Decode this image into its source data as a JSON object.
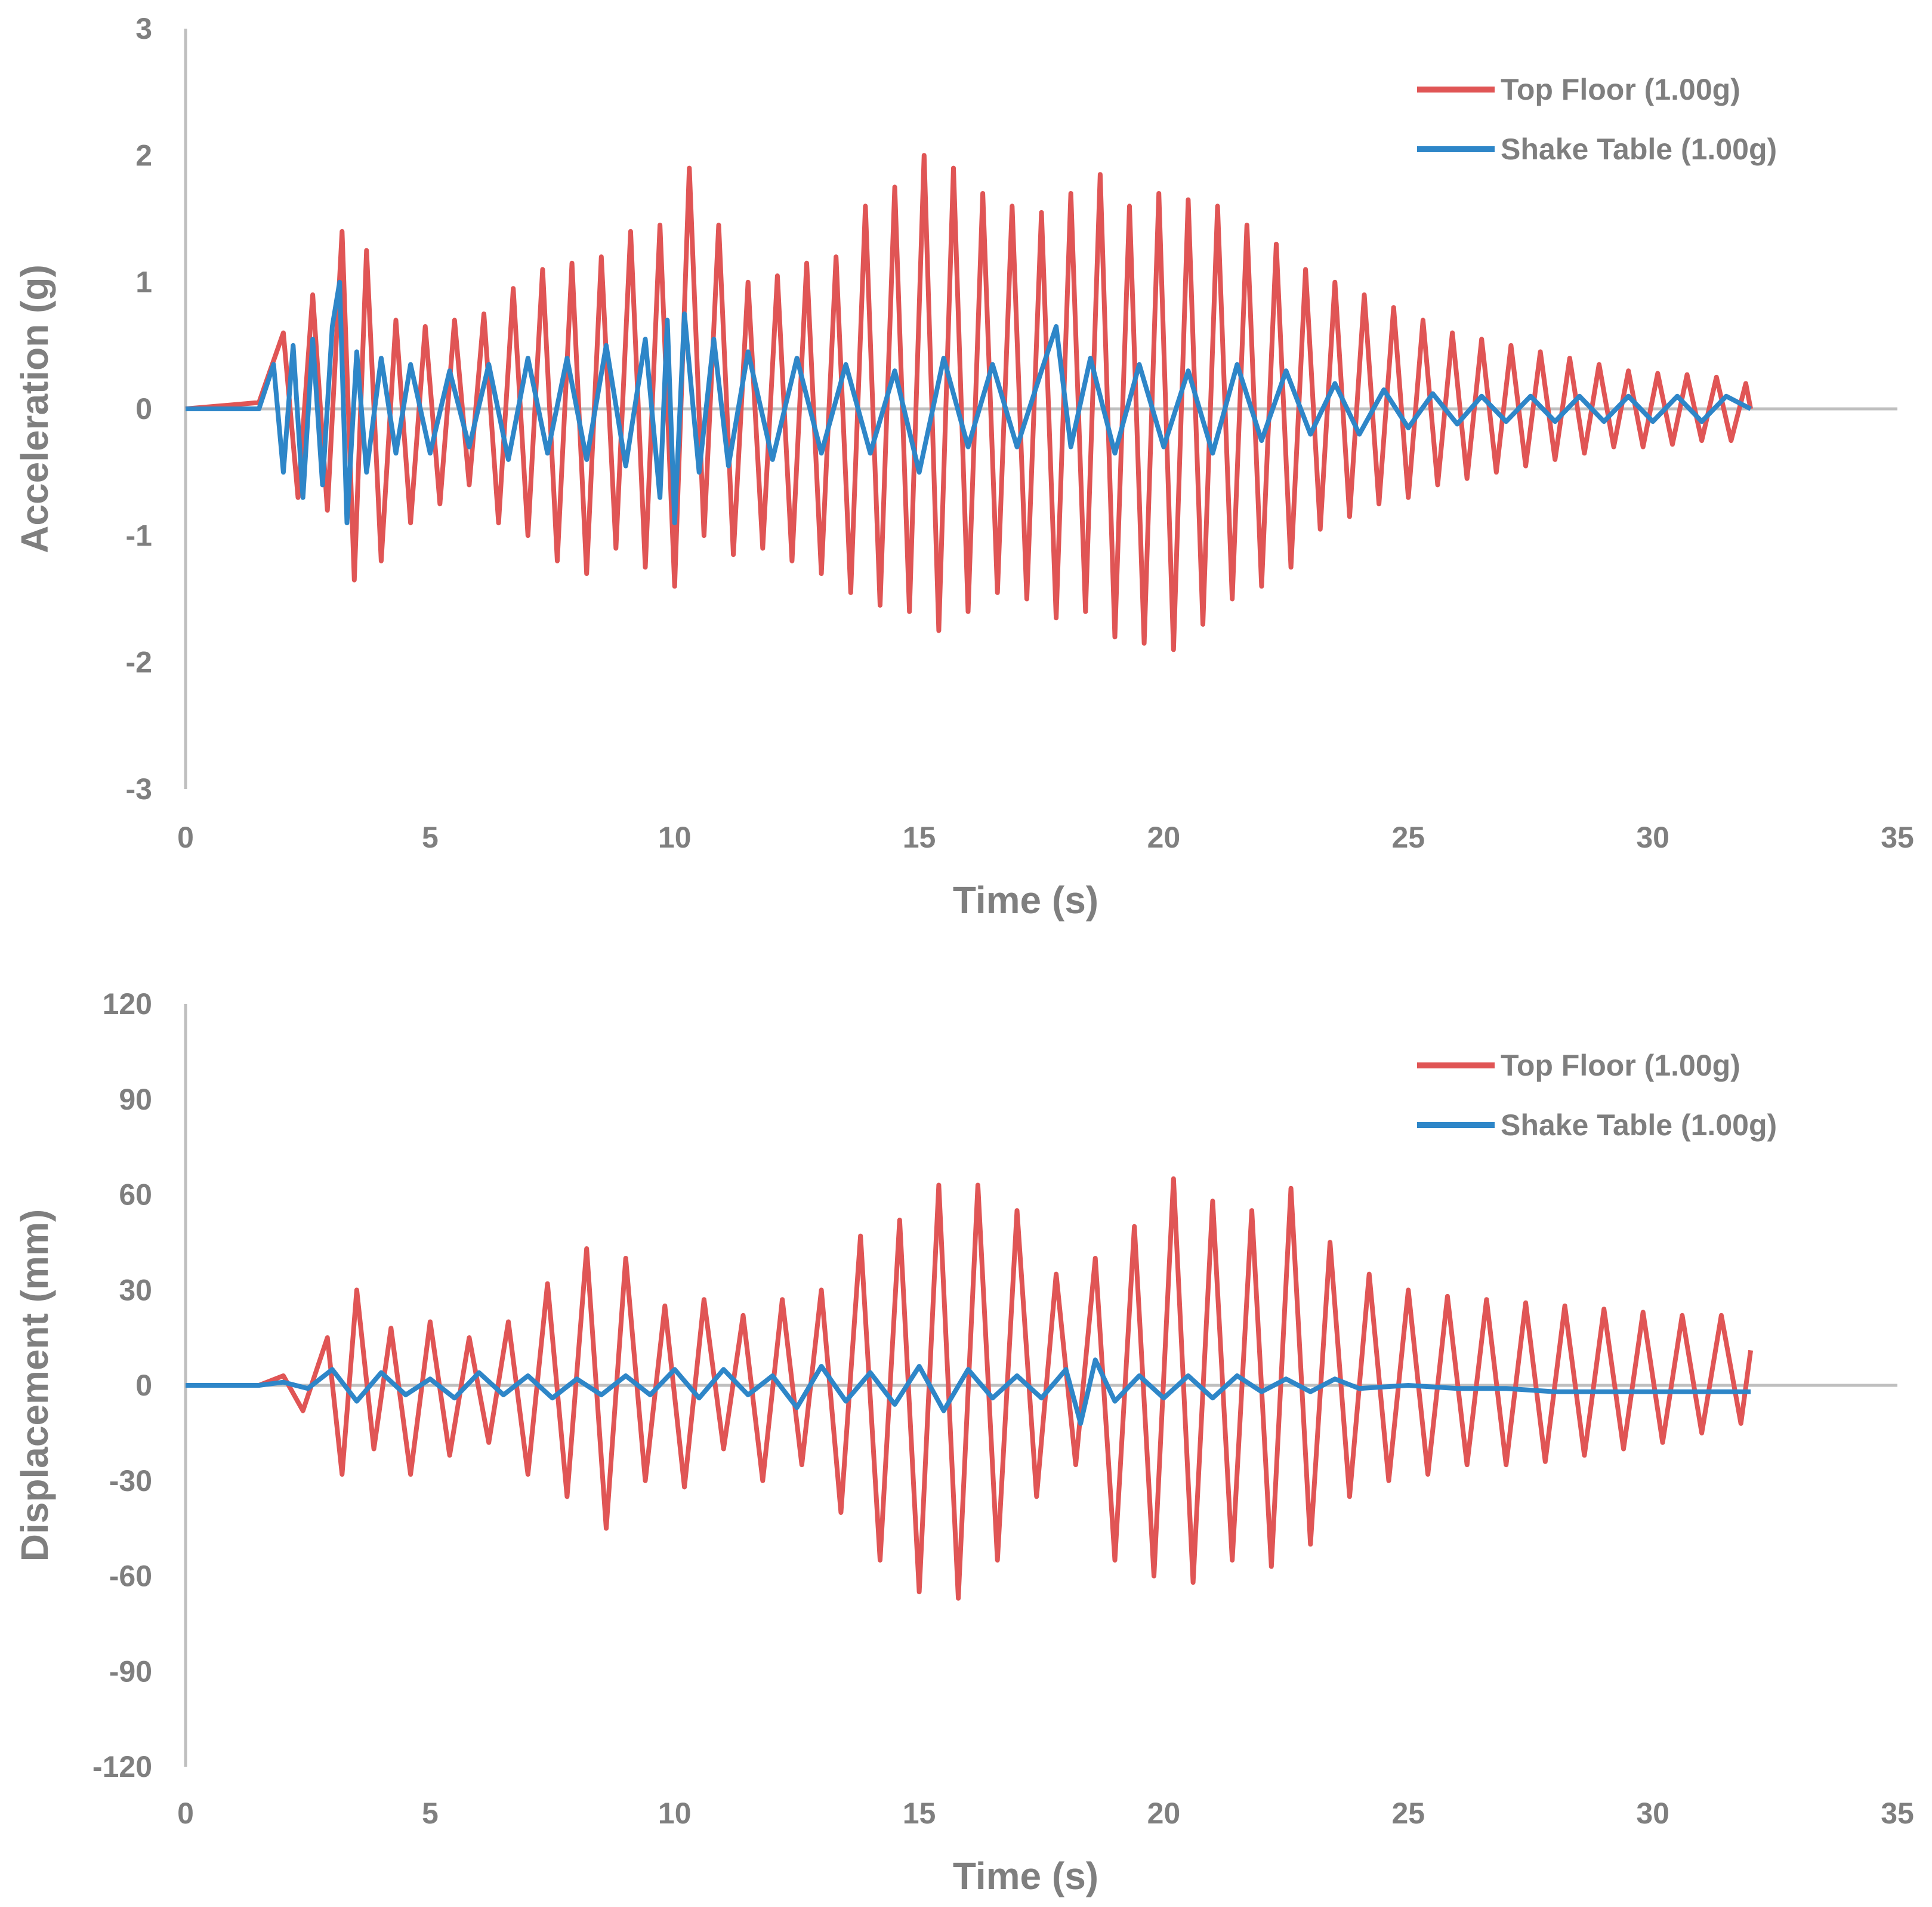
{
  "colors": {
    "top_floor": "#e05555",
    "shake_table": "#2e86c8",
    "axis": "#bfbfbf",
    "text": "#7f7f7f"
  },
  "chart_data": [
    {
      "type": "line",
      "title": "",
      "xlabel": "Time (s)",
      "ylabel": "Acceleration (g)",
      "xlim": [
        0,
        35
      ],
      "ylim": [
        -3,
        3
      ],
      "xticks": [
        0,
        5,
        10,
        15,
        20,
        25,
        30,
        35
      ],
      "yticks": [
        -3,
        -2,
        -1,
        0,
        1,
        2,
        3
      ],
      "x_tick_labels": [
        "0",
        "5",
        "10",
        "15",
        "20",
        "25",
        "30",
        "35"
      ],
      "y_tick_labels": [
        "-3",
        "-2",
        "-1",
        "0",
        "1",
        "2",
        "3"
      ],
      "grid": false,
      "legend_position": "top-right",
      "series": [
        {
          "name": "Top Floor (1.00g)",
          "color": "#e05555",
          "x": [
            0,
            1.5,
            2.0,
            2.3,
            2.6,
            2.9,
            3.2,
            3.45,
            3.7,
            4.0,
            4.3,
            4.6,
            4.9,
            5.2,
            5.5,
            5.8,
            6.1,
            6.4,
            6.7,
            7.0,
            7.3,
            7.6,
            7.9,
            8.2,
            8.5,
            8.8,
            9.1,
            9.4,
            9.7,
            10.0,
            10.3,
            10.6,
            10.9,
            11.2,
            11.5,
            11.8,
            12.1,
            12.4,
            12.7,
            13.0,
            13.3,
            13.6,
            13.9,
            14.2,
            14.5,
            14.8,
            15.1,
            15.4,
            15.7,
            16.0,
            16.3,
            16.6,
            16.9,
            17.2,
            17.5,
            17.8,
            18.1,
            18.4,
            18.7,
            19.0,
            19.3,
            19.6,
            19.9,
            20.2,
            20.5,
            20.8,
            21.1,
            21.4,
            21.7,
            22.0,
            22.3,
            22.6,
            22.9,
            23.2,
            23.5,
            23.8,
            24.1,
            24.4,
            24.7,
            25.0,
            25.3,
            25.6,
            25.9,
            26.2,
            26.5,
            26.8,
            27.1,
            27.4,
            27.7,
            28.0,
            28.3,
            28.6,
            28.9,
            29.2,
            29.5,
            29.8,
            30.1,
            30.4,
            30.7,
            31.0,
            31.3,
            31.6,
            31.9,
            32.0
          ],
          "values": [
            0.0,
            0.05,
            0.6,
            -0.7,
            0.9,
            -0.8,
            1.4,
            -1.35,
            1.25,
            -1.2,
            0.7,
            -0.9,
            0.65,
            -0.75,
            0.7,
            -0.6,
            0.75,
            -0.9,
            0.95,
            -1.0,
            1.1,
            -1.2,
            1.15,
            -1.3,
            1.2,
            -1.1,
            1.4,
            -1.25,
            1.45,
            -1.4,
            1.9,
            -1.0,
            1.45,
            -1.15,
            1.0,
            -1.1,
            1.05,
            -1.2,
            1.15,
            -1.3,
            1.2,
            -1.45,
            1.6,
            -1.55,
            1.75,
            -1.6,
            2.0,
            -1.75,
            1.9,
            -1.6,
            1.7,
            -1.45,
            1.6,
            -1.5,
            1.55,
            -1.65,
            1.7,
            -1.6,
            1.85,
            -1.8,
            1.6,
            -1.85,
            1.7,
            -1.9,
            1.65,
            -1.7,
            1.6,
            -1.5,
            1.45,
            -1.4,
            1.3,
            -1.25,
            1.1,
            -0.95,
            1.0,
            -0.85,
            0.9,
            -0.75,
            0.8,
            -0.7,
            0.7,
            -0.6,
            0.6,
            -0.55,
            0.55,
            -0.5,
            0.5,
            -0.45,
            0.45,
            -0.4,
            0.4,
            -0.35,
            0.35,
            -0.3,
            0.3,
            -0.3,
            0.28,
            -0.28,
            0.27,
            -0.25,
            0.25,
            -0.25,
            0.2,
            0.0
          ]
        },
        {
          "name": "Shake Table (1.00g)",
          "color": "#2e86c8",
          "x": [
            0,
            1.5,
            1.8,
            2.0,
            2.2,
            2.4,
            2.6,
            2.8,
            3.0,
            3.15,
            3.3,
            3.5,
            3.7,
            4.0,
            4.3,
            4.6,
            5.0,
            5.4,
            5.8,
            6.2,
            6.6,
            7.0,
            7.4,
            7.8,
            8.2,
            8.6,
            9.0,
            9.4,
            9.7,
            9.85,
            10.0,
            10.2,
            10.5,
            10.8,
            11.1,
            11.5,
            12.0,
            12.5,
            13.0,
            13.5,
            14.0,
            14.5,
            15.0,
            15.5,
            16.0,
            16.5,
            17.0,
            17.5,
            17.8,
            18.1,
            18.5,
            19.0,
            19.5,
            20.0,
            20.5,
            21.0,
            21.5,
            22.0,
            22.5,
            23.0,
            23.5,
            24.0,
            24.5,
            25.0,
            25.5,
            26.0,
            26.5,
            27.0,
            27.5,
            28.0,
            28.5,
            29.0,
            29.5,
            30.0,
            30.5,
            31.0,
            31.5,
            32.0
          ],
          "values": [
            0.0,
            0.0,
            0.35,
            -0.5,
            0.5,
            -0.7,
            0.55,
            -0.6,
            0.65,
            1.0,
            -0.9,
            0.45,
            -0.5,
            0.4,
            -0.35,
            0.35,
            -0.35,
            0.3,
            -0.3,
            0.35,
            -0.4,
            0.4,
            -0.35,
            0.4,
            -0.4,
            0.5,
            -0.45,
            0.55,
            -0.7,
            0.7,
            -0.9,
            0.75,
            -0.5,
            0.55,
            -0.45,
            0.45,
            -0.4,
            0.4,
            -0.35,
            0.35,
            -0.35,
            0.3,
            -0.5,
            0.4,
            -0.3,
            0.35,
            -0.3,
            0.3,
            0.65,
            -0.3,
            0.4,
            -0.35,
            0.35,
            -0.3,
            0.3,
            -0.35,
            0.35,
            -0.25,
            0.3,
            -0.2,
            0.2,
            -0.2,
            0.15,
            -0.15,
            0.12,
            -0.12,
            0.1,
            -0.1,
            0.1,
            -0.1,
            0.1,
            -0.1,
            0.1,
            -0.1,
            0.1,
            -0.1,
            0.1,
            0.0
          ]
        }
      ]
    },
    {
      "type": "line",
      "title": "",
      "xlabel": "Time (s)",
      "ylabel": "Displacement (mm)",
      "xlim": [
        0,
        35
      ],
      "ylim": [
        -120,
        120
      ],
      "xticks": [
        0,
        5,
        10,
        15,
        20,
        25,
        30,
        35
      ],
      "yticks": [
        -120,
        -90,
        -60,
        -30,
        0,
        30,
        60,
        90,
        120
      ],
      "x_tick_labels": [
        "0",
        "5",
        "10",
        "15",
        "20",
        "25",
        "30",
        "35"
      ],
      "y_tick_labels": [
        "-120",
        "-90",
        "-60",
        "-30",
        "0",
        "30",
        "60",
        "90",
        "120"
      ],
      "grid": false,
      "legend_position": "top-right",
      "series": [
        {
          "name": "Top Floor (1.00g)",
          "color": "#e05555",
          "x": [
            0,
            1.5,
            2.0,
            2.4,
            2.9,
            3.2,
            3.5,
            3.85,
            4.2,
            4.6,
            5.0,
            5.4,
            5.8,
            6.2,
            6.6,
            7.0,
            7.4,
            7.8,
            8.2,
            8.6,
            9.0,
            9.4,
            9.8,
            10.2,
            10.6,
            11.0,
            11.4,
            11.8,
            12.2,
            12.6,
            13.0,
            13.4,
            13.8,
            14.2,
            14.6,
            15.0,
            15.4,
            15.8,
            16.2,
            16.6,
            17.0,
            17.4,
            17.8,
            18.2,
            18.6,
            19.0,
            19.4,
            19.8,
            20.2,
            20.6,
            21.0,
            21.4,
            21.8,
            22.2,
            22.6,
            23.0,
            23.4,
            23.8,
            24.2,
            24.6,
            25.0,
            25.4,
            25.8,
            26.2,
            26.6,
            27.0,
            27.4,
            27.8,
            28.2,
            28.6,
            29.0,
            29.4,
            29.8,
            30.2,
            30.6,
            31.0,
            31.4,
            31.8,
            32.0
          ],
          "values": [
            0,
            0,
            3,
            -8,
            15,
            -28,
            30,
            -20,
            18,
            -28,
            20,
            -22,
            15,
            -18,
            20,
            -28,
            32,
            -35,
            43,
            -45,
            40,
            -30,
            25,
            -32,
            27,
            -20,
            22,
            -30,
            27,
            -25,
            30,
            -40,
            47,
            -55,
            52,
            -65,
            63,
            -67,
            63,
            -55,
            55,
            -35,
            35,
            -25,
            40,
            -55,
            50,
            -60,
            65,
            -62,
            58,
            -55,
            55,
            -57,
            62,
            -50,
            45,
            -35,
            35,
            -30,
            30,
            -28,
            28,
            -25,
            27,
            -25,
            26,
            -24,
            25,
            -22,
            24,
            -20,
            23,
            -18,
            22,
            -15,
            22,
            -12,
            11
          ]
        },
        {
          "name": "Shake Table (1.00g)",
          "color": "#2e86c8",
          "x": [
            0,
            1.5,
            2.0,
            2.5,
            3.0,
            3.5,
            4.0,
            4.5,
            5.0,
            5.5,
            6.0,
            6.5,
            7.0,
            7.5,
            8.0,
            8.5,
            9.0,
            9.5,
            10.0,
            10.5,
            11.0,
            11.5,
            12.0,
            12.5,
            13.0,
            13.5,
            14.0,
            14.5,
            15.0,
            15.5,
            16.0,
            16.5,
            17.0,
            17.5,
            18.0,
            18.3,
            18.6,
            19.0,
            19.5,
            20.0,
            20.5,
            21.0,
            21.5,
            22.0,
            22.5,
            23.0,
            23.5,
            24.0,
            25.0,
            26.0,
            27.0,
            28.0,
            29.0,
            30.0,
            31.0,
            32.0
          ],
          "values": [
            0,
            0,
            1,
            -1,
            5,
            -5,
            4,
            -3,
            2,
            -4,
            4,
            -3,
            3,
            -4,
            2,
            -3,
            3,
            -3,
            5,
            -4,
            5,
            -3,
            3,
            -7,
            6,
            -5,
            4,
            -6,
            6,
            -8,
            5,
            -4,
            3,
            -4,
            5,
            -12,
            8,
            -5,
            3,
            -4,
            3,
            -4,
            3,
            -2,
            2,
            -2,
            2,
            -1,
            0,
            -1,
            -1,
            -2,
            -2,
            -2,
            -2,
            -2
          ]
        }
      ]
    }
  ]
}
